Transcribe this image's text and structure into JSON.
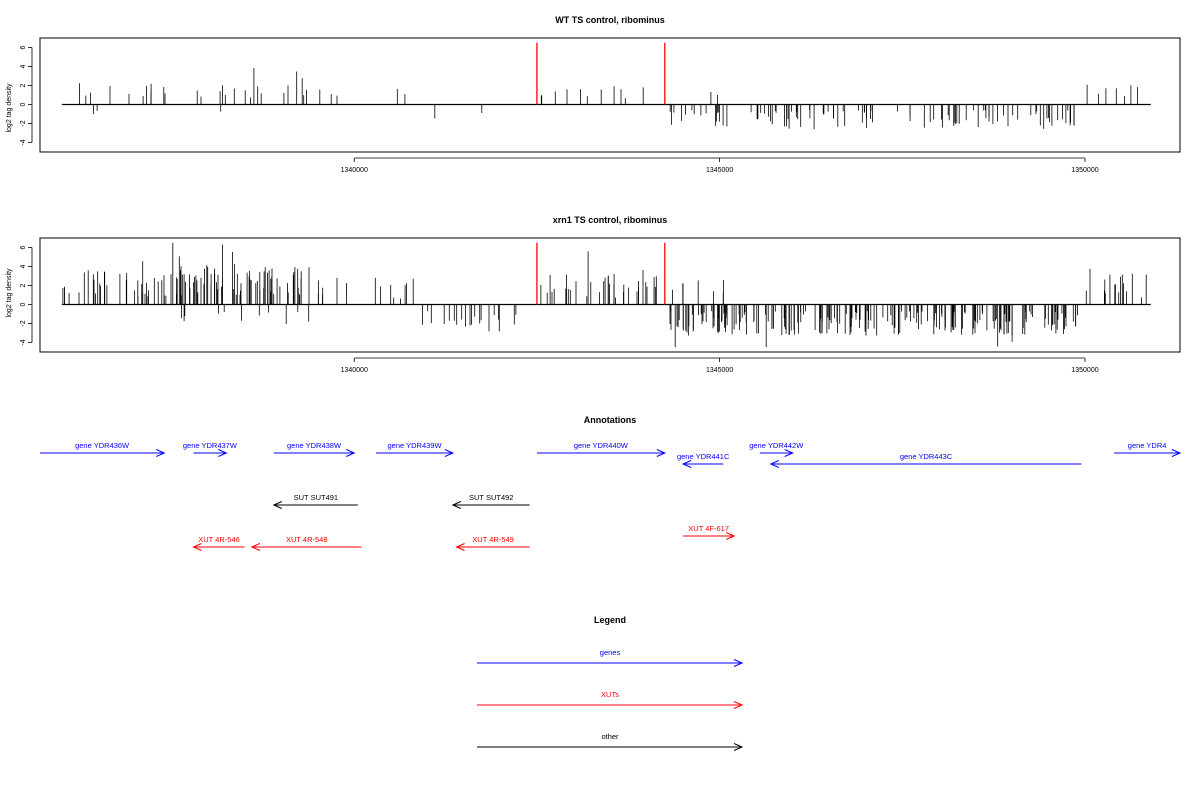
{
  "chart_data": [
    {
      "type": "bar",
      "title": "WT TS control, ribominus",
      "xlabel": "",
      "ylabel": "log2 tag density",
      "xlim": [
        1335700,
        1351300
      ],
      "ylim": [
        -5,
        7
      ],
      "xticks": [
        1340000,
        1345000,
        1350000
      ],
      "yticks": [
        -4,
        -2,
        0,
        2,
        4,
        6
      ],
      "grid": false,
      "marker_lines": [
        {
          "x": 1342500,
          "color": "#ff0000"
        },
        {
          "x": 1344250,
          "color": "#ff0000"
        }
      ],
      "profile": [
        {
          "start": 1336000,
          "end": 1337400,
          "density": 0.45,
          "mean": 1.5,
          "sign": 1
        },
        {
          "start": 1336400,
          "end": 1336500,
          "density": 1,
          "mean": 1.2,
          "sign": -1
        },
        {
          "start": 1337400,
          "end": 1339400,
          "density": 0.55,
          "mean": 1.6,
          "sign": 1
        },
        {
          "start": 1337650,
          "end": 1338300,
          "density": 0.08,
          "mean": 0.6,
          "sign": -1
        },
        {
          "start": 1339400,
          "end": 1340900,
          "density": 0.22,
          "mean": 1.0,
          "sign": 1
        },
        {
          "start": 1340700,
          "end": 1342000,
          "density": 0.1,
          "mean": 1.0,
          "sign": -1
        },
        {
          "start": 1342550,
          "end": 1344250,
          "density": 0.4,
          "mean": 1.3,
          "sign": 1
        },
        {
          "start": 1344250,
          "end": 1345150,
          "density": 0.15,
          "mean": 1.3,
          "sign": 1
        },
        {
          "start": 1344300,
          "end": 1349900,
          "density": 1.15,
          "mean": 1.6,
          "sign": -1
        },
        {
          "start": 1350000,
          "end": 1350900,
          "density": 0.5,
          "mean": 1.3,
          "sign": 1
        }
      ]
    },
    {
      "type": "bar",
      "title": "xrn1 TS control, ribominus",
      "xlabel": "",
      "ylabel": "log2 tag density",
      "xlim": [
        1335700,
        1351300
      ],
      "ylim": [
        -5,
        7
      ],
      "xticks": [
        1340000,
        1345000,
        1350000
      ],
      "yticks": [
        -4,
        -2,
        0,
        2,
        4,
        6
      ],
      "grid": false,
      "marker_lines": [
        {
          "x": 1342500,
          "color": "#ff0000"
        },
        {
          "x": 1344250,
          "color": "#ff0000"
        }
      ],
      "profile": [
        {
          "start": 1336000,
          "end": 1337400,
          "density": 1.5,
          "mean": 2.3,
          "sign": 1
        },
        {
          "start": 1337400,
          "end": 1339400,
          "density": 2.6,
          "mean": 2.6,
          "sign": 1
        },
        {
          "start": 1337600,
          "end": 1339500,
          "density": 0.35,
          "mean": 1.3,
          "sign": -1
        },
        {
          "start": 1339400,
          "end": 1340850,
          "density": 0.6,
          "mean": 1.7,
          "sign": 1
        },
        {
          "start": 1340850,
          "end": 1342250,
          "density": 0.9,
          "mean": 1.8,
          "sign": -1
        },
        {
          "start": 1342550,
          "end": 1344250,
          "density": 1.3,
          "mean": 2.0,
          "sign": 1
        },
        {
          "start": 1344250,
          "end": 1345100,
          "density": 0.5,
          "mean": 1.7,
          "sign": 1
        },
        {
          "start": 1344300,
          "end": 1349900,
          "density": 2.5,
          "mean": 2.0,
          "sign": -1
        },
        {
          "start": 1350000,
          "end": 1350900,
          "density": 1.1,
          "mean": 2.0,
          "sign": 1
        }
      ]
    }
  ],
  "annotations": {
    "title": "Annotations",
    "features": [
      {
        "label": "gene YDR436W",
        "start": 1335700,
        "end": 1337400,
        "strand": "+",
        "row": 0,
        "color": "#0000ff"
      },
      {
        "label": "gene YDR437W",
        "start": 1337800,
        "end": 1338250,
        "strand": "+",
        "row": 0,
        "color": "#0000ff"
      },
      {
        "label": "gene YDR438W",
        "start": 1338900,
        "end": 1340000,
        "strand": "+",
        "row": 0,
        "color": "#0000ff"
      },
      {
        "label": "gene YDR439W",
        "start": 1340300,
        "end": 1341350,
        "strand": "+",
        "row": 0,
        "color": "#0000ff"
      },
      {
        "label": "gene YDR440W",
        "start": 1342500,
        "end": 1344250,
        "strand": "+",
        "row": 0,
        "color": "#0000ff"
      },
      {
        "label": "gene YDR441C",
        "start": 1344500,
        "end": 1345050,
        "strand": "-",
        "row": 1,
        "color": "#0000ff"
      },
      {
        "label": "gene YDR442W",
        "start": 1345550,
        "end": 1346000,
        "strand": "+",
        "row": 0,
        "color": "#0000ff"
      },
      {
        "label": "gene YDR443C",
        "start": 1345700,
        "end": 1349950,
        "strand": "-",
        "row": 1,
        "color": "#0000ff"
      },
      {
        "label": "gene YDR4",
        "start": 1350400,
        "end": 1351300,
        "strand": "+",
        "row": 0,
        "color": "#0000ff"
      },
      {
        "label": "SUT SUT491",
        "start": 1338900,
        "end": 1340050,
        "strand": "-",
        "row": 2,
        "color": "#000000"
      },
      {
        "label": "SUT SUT492",
        "start": 1341350,
        "end": 1342400,
        "strand": "-",
        "row": 2,
        "color": "#000000"
      },
      {
        "label": "XUT 4R-546",
        "start": 1337800,
        "end": 1338500,
        "strand": "-",
        "row": 3,
        "color": "#ff0000"
      },
      {
        "label": "XUT 4R-548",
        "start": 1338600,
        "end": 1340100,
        "strand": "-",
        "row": 3,
        "color": "#ff0000"
      },
      {
        "label": "XUT 4R-549",
        "start": 1341400,
        "end": 1342400,
        "strand": "-",
        "row": 3,
        "color": "#ff0000"
      },
      {
        "label": "XUT 4F-617",
        "start": 1344500,
        "end": 1345200,
        "strand": "+",
        "row": 4,
        "color": "#ff0000"
      }
    ]
  },
  "legend": {
    "title": "Legend",
    "entries": [
      {
        "label": "genes",
        "color": "#0000ff"
      },
      {
        "label": "XUTs",
        "color": "#ff0000"
      },
      {
        "label": "other",
        "color": "#000000"
      }
    ]
  }
}
